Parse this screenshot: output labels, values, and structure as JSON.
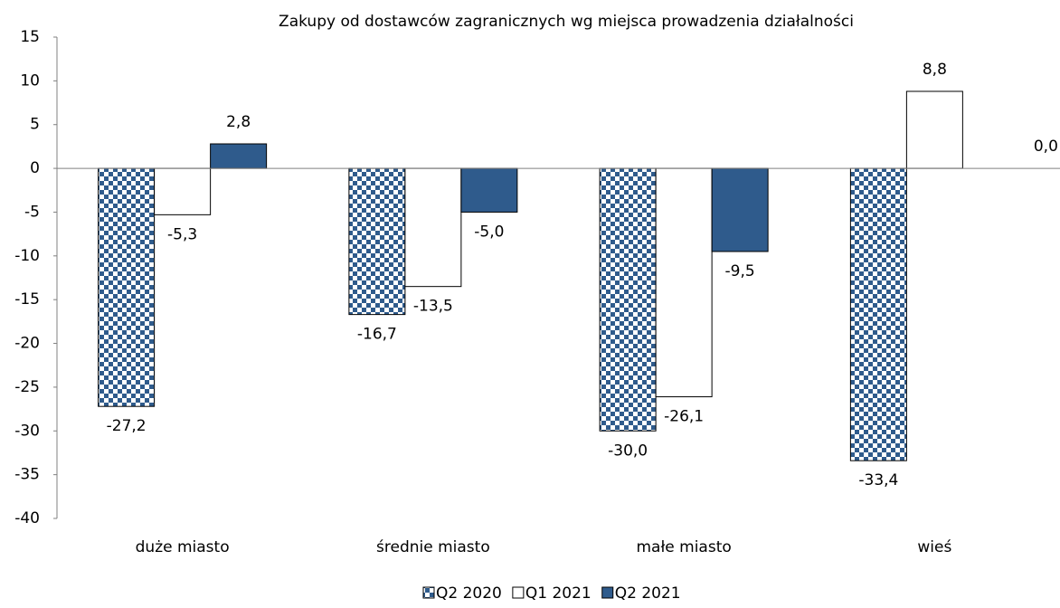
{
  "chart_data": {
    "type": "bar",
    "title": "Zakupy od dostawców zagranicznych wg miejsca prowadzenia działalności",
    "categories": [
      "duże miasto",
      "średnie miasto",
      "małe miasto",
      "wieś"
    ],
    "series": [
      {
        "name": "Q2 2020",
        "color": "#2f5b8c",
        "pattern": "checker",
        "values": [
          -27.2,
          -16.7,
          -30.0,
          -33.4
        ],
        "value_labels": [
          "-27,2",
          "-16,7",
          "-30,0",
          "-33,4"
        ]
      },
      {
        "name": "Q1 2021",
        "color": "#ffffff",
        "values": [
          -5.3,
          -13.5,
          -26.1,
          8.8
        ],
        "value_labels": [
          "-5,3",
          "-13,5",
          "-26,1",
          "8,8"
        ]
      },
      {
        "name": "Q2 2021",
        "color": "#2f5b8c",
        "values": [
          2.8,
          -5.0,
          -9.5,
          0.0
        ],
        "value_labels": [
          "2,8",
          "-5,0",
          "-9,5",
          "0,0"
        ]
      }
    ],
    "ylim": [
      -40,
      15
    ],
    "yticks": [
      -40,
      -35,
      -30,
      -25,
      -20,
      -15,
      -10,
      -5,
      0,
      5,
      10,
      15
    ],
    "grid": false,
    "legend": "bottom"
  }
}
